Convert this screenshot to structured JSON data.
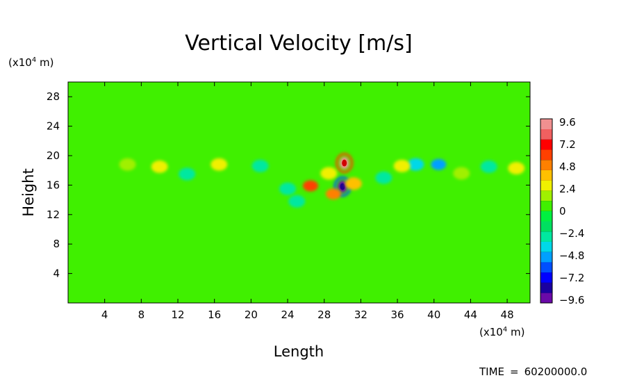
{
  "chart_data": {
    "type": "heatmap",
    "title": "Vertical Velocity [m/s]",
    "xlabel": "Length",
    "ylabel": "Height",
    "x_unit": "(x10",
    "x_unit_exp": "4",
    "x_unit_tail": " m)",
    "y_unit": "(x10",
    "y_unit_exp": "4",
    "y_unit_tail": " m)",
    "xlim": [
      0,
      50.5
    ],
    "ylim": [
      0,
      30
    ],
    "x_ticks": [
      4,
      8,
      12,
      16,
      20,
      24,
      28,
      32,
      36,
      40,
      44,
      48
    ],
    "y_ticks": [
      4,
      8,
      12,
      16,
      20,
      24,
      28
    ],
    "x_tick_labels": [
      "4",
      "8",
      "12",
      "16",
      "20",
      "24",
      "28",
      "32",
      "36",
      "40",
      "44",
      "48"
    ],
    "y_tick_labels": [
      "4",
      "8",
      "12",
      "16",
      "20",
      "24",
      "28"
    ],
    "colorbar": {
      "labels": [
        "9.6",
        "7.2",
        "4.8",
        "2.4",
        "0",
        "−2.4",
        "−4.8",
        "−7.2",
        "−9.6"
      ],
      "min": -9.6,
      "max": 9.6,
      "colors": [
        "#6a0aa8",
        "#1a00a0",
        "#0000ff",
        "#0050ff",
        "#00a0ff",
        "#00d8e8",
        "#00e8a0",
        "#00e060",
        "#00f040",
        "#40f000",
        "#a0f000",
        "#f0f000",
        "#ffc000",
        "#ff8000",
        "#ff4000",
        "#ff0000",
        "#f06060",
        "#f09090"
      ]
    },
    "background_value": 0,
    "features": [
      {
        "x": 30.2,
        "y": 19.0,
        "value": 9.6
      },
      {
        "x": 30.0,
        "y": 15.8,
        "value": -9.6
      },
      {
        "x": 26.5,
        "y": 15.9,
        "value": 5.5
      },
      {
        "x": 29.0,
        "y": 14.8,
        "value": 4.5
      },
      {
        "x": 31.2,
        "y": 16.2,
        "value": 3.5
      },
      {
        "x": 28.5,
        "y": 17.6,
        "value": 3.0
      },
      {
        "x": 38.0,
        "y": 18.8,
        "value": -4.0
      },
      {
        "x": 40.5,
        "y": 18.8,
        "value": -4.5
      },
      {
        "x": 24.0,
        "y": 15.5,
        "value": -3.0
      },
      {
        "x": 25.0,
        "y": 13.8,
        "value": -2.8
      },
      {
        "x": 13.0,
        "y": 17.5,
        "value": -2.6
      },
      {
        "x": 21.0,
        "y": 18.6,
        "value": -2.5
      },
      {
        "x": 46.0,
        "y": 18.5,
        "value": -2.8
      },
      {
        "x": 34.5,
        "y": 17.0,
        "value": -2.4
      },
      {
        "x": 10.0,
        "y": 18.5,
        "value": 2.4
      },
      {
        "x": 16.5,
        "y": 18.8,
        "value": 2.4
      },
      {
        "x": 49.0,
        "y": 18.3,
        "value": 2.6
      },
      {
        "x": 6.5,
        "y": 18.8,
        "value": 2.0
      },
      {
        "x": 36.5,
        "y": 18.6,
        "value": 2.2
      },
      {
        "x": 43.0,
        "y": 17.6,
        "value": 2.0
      }
    ]
  },
  "footer": {
    "time_label": "TIME",
    "time_eq": "=",
    "time_value": "60200000.0"
  }
}
